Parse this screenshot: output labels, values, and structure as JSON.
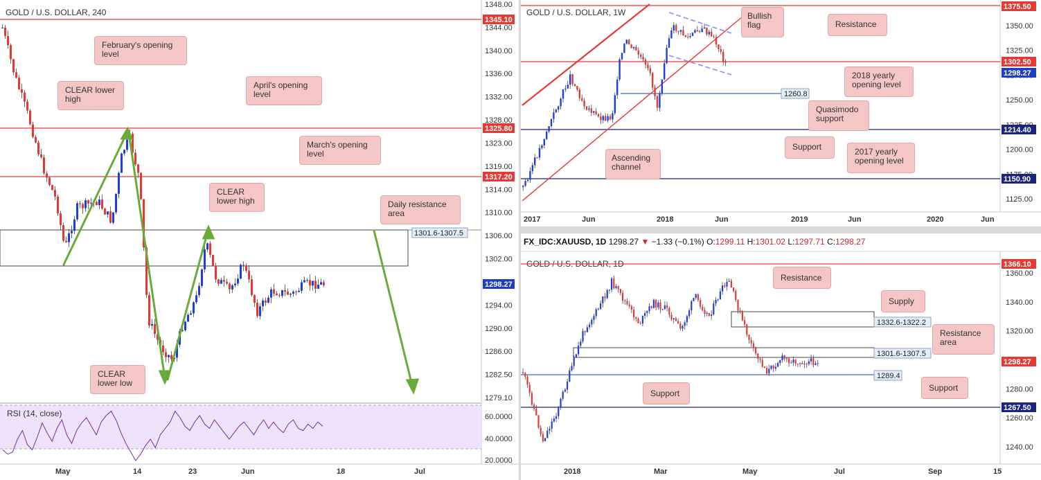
{
  "panels": {
    "h4": {
      "title": "GOLD / U.S. DOLLAR, 240",
      "price_axis": [
        "1348.00",
        "1344.00",
        "1340.00",
        "1336.00",
        "1332.00",
        "1328.00",
        "1323.00",
        "1319.00",
        "1314.00",
        "1310.00",
        "1306.00",
        "1302.00",
        "1298.00",
        "1294.00",
        "1290.00",
        "1286.00",
        "1282.50",
        "1279.10"
      ],
      "time_axis": [
        "May",
        "14",
        "23",
        "Jun",
        "18",
        "Jul"
      ],
      "level_tags": [
        {
          "text": "1345.10",
          "color": "#e53935"
        },
        {
          "text": "1325.80",
          "color": "#e53935"
        },
        {
          "text": "1317.20",
          "color": "#e53935"
        },
        {
          "text": "1298.27",
          "color": "#1e3fbf"
        }
      ],
      "zone_tag": "1301.6-1307.5",
      "annotations": [
        "February's opening level",
        "April's opening level",
        "CLEAR lower high",
        "March's opening level",
        "CLEAR lower high",
        "Daily resistance area",
        "CLEAR lower low"
      ],
      "rsi_label": "RSI (14, close)",
      "rsi_axis": [
        "60.0000",
        "40.0000",
        "20.0000"
      ],
      "rsi_values": [
        30,
        26,
        28,
        40,
        48,
        35,
        30,
        42,
        55,
        46,
        38,
        50,
        58,
        44,
        36,
        48,
        55,
        60,
        52,
        44,
        56,
        62,
        66,
        58,
        46,
        36,
        28,
        20,
        26,
        34,
        40,
        32,
        44,
        50,
        56,
        66,
        60,
        52,
        48,
        56,
        62,
        54,
        50,
        58,
        52,
        46,
        40,
        46,
        52,
        56,
        50,
        44,
        52,
        58,
        50,
        56,
        50,
        46,
        54,
        58,
        50,
        48,
        54,
        50,
        56,
        52
      ]
    },
    "weekly": {
      "title": "GOLD / U.S. DOLLAR, 1W",
      "price_axis": [
        "1350.00",
        "1325.00",
        "1275.00",
        "1250.00",
        "1225.00",
        "1200.00",
        "1175.00",
        "1125.00"
      ],
      "time_axis": [
        "2017",
        "Jun",
        "2018",
        "Jun",
        "2019",
        "Jun",
        "2020",
        "Jun"
      ],
      "level_tags": [
        {
          "text": "1375.50",
          "color": "#e53935"
        },
        {
          "text": "1302.50",
          "color": "#e53935"
        },
        {
          "text": "1298.27",
          "color": "#1e3fbf"
        },
        {
          "text": "1214.40",
          "color": "#1a237e"
        },
        {
          "text": "1150.90",
          "color": "#1a237e"
        }
      ],
      "inline_tag": "1260.8",
      "annotations": [
        "Bullish flag",
        "Resistance",
        "2018 yearly opening level",
        "Quasimodo support",
        "Support",
        "2017 yearly opening level",
        "Ascending channel"
      ]
    },
    "daily": {
      "header": {
        "symbol": "FX_IDC:XAUUSD, 1D",
        "last": "1298.27",
        "change": "−1.33 (−0.1%)",
        "o_label": "O:",
        "o": "1299.11",
        "h_label": "H:",
        "h": "1301.02",
        "l_label": "L:",
        "l": "1297.71",
        "c_label": "C:",
        "c": "1298.27"
      },
      "title": "GOLD / U.S. DOLLAR, 1D",
      "price_axis": [
        "1360.00",
        "1340.00",
        "1320.00",
        "1300.00",
        "1280.00",
        "1260.00",
        "1240.00"
      ],
      "time_axis": [
        "2018",
        "Mar",
        "May",
        "Jul",
        "Sep",
        "15"
      ],
      "level_tags": [
        {
          "text": "1366.10",
          "color": "#e53935"
        },
        {
          "text": "1298.27",
          "color": "#e53935"
        },
        {
          "text": "1267.50",
          "color": "#1a237e"
        }
      ],
      "zone_tags": [
        "1332.6-1322.2",
        "1301.6-1307.5",
        "1289.4"
      ],
      "annotations": [
        "Resistance",
        "Supply",
        "Resistance area",
        "Support",
        "Support"
      ]
    }
  }
}
